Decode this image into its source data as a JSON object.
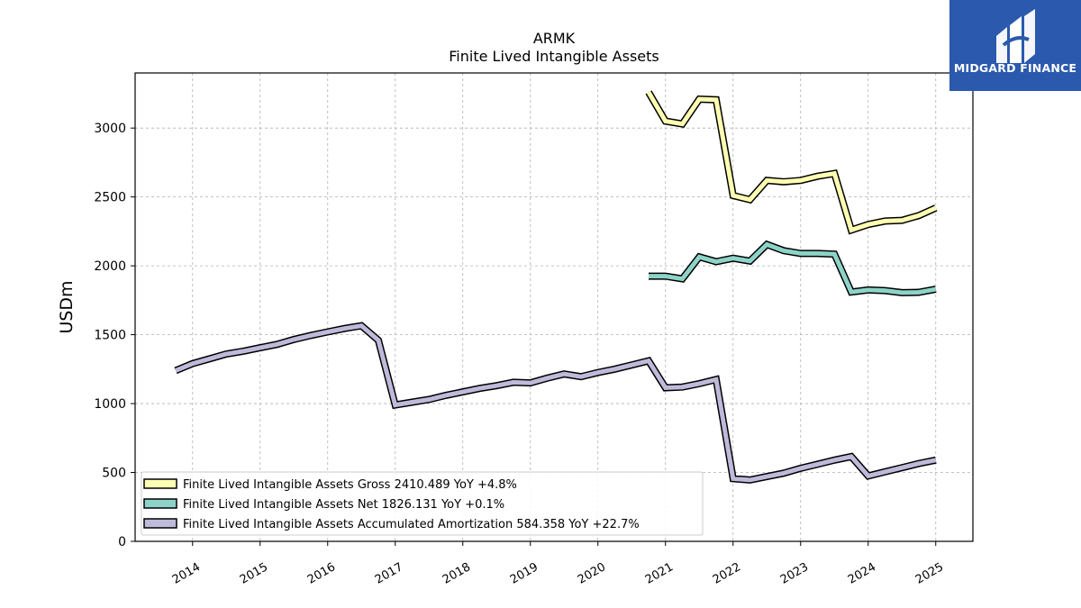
{
  "brand": {
    "name": "MIDGARD FINANCE",
    "color": "#2b59ad"
  },
  "chart_data": {
    "type": "line",
    "title": "ARMK",
    "subtitle": "Finite Lived Intangible Assets",
    "ylabel": "USDm",
    "xlabel": "",
    "ylim": [
      0,
      3400
    ],
    "yticks": [
      0,
      500,
      1000,
      1500,
      2000,
      2500,
      3000
    ],
    "xlim": [
      2013.15,
      2025.55
    ],
    "xticks": [
      "2014",
      "2015",
      "2016",
      "2017",
      "2018",
      "2019",
      "2020",
      "2021",
      "2022",
      "2023",
      "2024",
      "2025"
    ],
    "grid": true,
    "legend_position": "lower-left",
    "series": [
      {
        "name": "Finite Lived Intangible Assets Gross",
        "legend_label": "Finite Lived Intangible Assets Gross  2410.489 YoY +4.8%",
        "color": "#ffffb3",
        "x": [
          2020.75,
          2021.0,
          2021.25,
          2021.5,
          2021.75,
          2022.0,
          2022.25,
          2022.5,
          2022.75,
          2023.0,
          2023.25,
          2023.5,
          2023.75,
          2024.0,
          2024.25,
          2024.5,
          2024.75,
          2025.0
        ],
        "y": [
          3260,
          3050,
          3030,
          3210,
          3205,
          2510,
          2480,
          2620,
          2610,
          2620,
          2650,
          2670,
          2260,
          2300,
          2325,
          2330,
          2365,
          2420
        ]
      },
      {
        "name": "Finite Lived Intangible Assets Net",
        "legend_label": "Finite Lived Intangible Assets Net  1826.131 YoY +0.1%",
        "color": "#8dd3c7",
        "x": [
          2020.75,
          2021.0,
          2021.25,
          2021.5,
          2021.75,
          2022.0,
          2022.25,
          2022.5,
          2022.75,
          2023.0,
          2023.25,
          2023.5,
          2023.75,
          2024.0,
          2024.25,
          2024.5,
          2024.75,
          2025.0
        ],
        "y": [
          1925,
          1925,
          1905,
          2065,
          2030,
          2055,
          2035,
          2155,
          2110,
          2090,
          2090,
          2085,
          1810,
          1825,
          1820,
          1805,
          1808,
          1830
        ]
      },
      {
        "name": "Finite Lived Intangible Assets Accumulated Amortization",
        "legend_label": "Finite Lived Intangible Assets Accumulated Amortization  584.358 YoY +22.7%",
        "color": "#bebada",
        "x": [
          2013.75,
          2014.0,
          2014.25,
          2014.5,
          2014.75,
          2015.0,
          2015.25,
          2015.5,
          2015.75,
          2016.0,
          2016.25,
          2016.5,
          2016.75,
          2017.0,
          2017.25,
          2017.5,
          2017.75,
          2018.0,
          2018.25,
          2018.5,
          2018.75,
          2019.0,
          2019.25,
          2019.5,
          2019.75,
          2020.0,
          2020.25,
          2020.5,
          2020.75,
          2021.0,
          2021.25,
          2021.5,
          2021.75,
          2022.0,
          2022.25,
          2022.5,
          2022.75,
          2023.0,
          2023.25,
          2023.5,
          2023.75,
          2024.0,
          2024.25,
          2024.5,
          2024.75,
          2025.0
        ],
        "y": [
          1240,
          1290,
          1325,
          1360,
          1380,
          1405,
          1430,
          1465,
          1495,
          1520,
          1545,
          1565,
          1460,
          990,
          1010,
          1030,
          1060,
          1085,
          1110,
          1130,
          1155,
          1150,
          1185,
          1215,
          1195,
          1225,
          1250,
          1280,
          1310,
          1115,
          1120,
          1145,
          1175,
          455,
          445,
          470,
          495,
          530,
          560,
          590,
          615,
          475,
          505,
          535,
          565,
          590
        ]
      }
    ]
  }
}
